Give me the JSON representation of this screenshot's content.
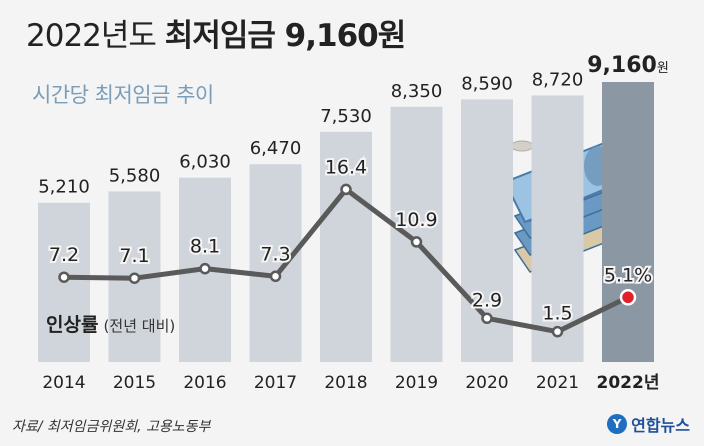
{
  "header": {
    "title_part1": "2022년도",
    "title_part2": "최저임금 9,160원",
    "subtitle": "시간당 최저임금 추이"
  },
  "legend": {
    "line_label": "인상률",
    "line_sublabel": "(전년 대비)"
  },
  "footer": {
    "source": "자료/ 최저임금위원회, 고용노동부",
    "logo_mark": "Y",
    "logo_text": "연합뉴스"
  },
  "colors": {
    "bar": "#cfd5da",
    "bar_highlight": "#8b98a4",
    "line": "#5a5a5a",
    "highlight_marker": "#e0202a"
  },
  "chart_data": {
    "type": "bar",
    "categories": [
      "2014",
      "2015",
      "2016",
      "2017",
      "2018",
      "2019",
      "2020",
      "2021",
      "2022년"
    ],
    "series": [
      {
        "type": "bar",
        "values": [
          5210,
          5580,
          6030,
          6470,
          7530,
          8350,
          8590,
          8720,
          9160
        ],
        "labels": [
          "5,210",
          "5,580",
          "6,030",
          "6,470",
          "7,530",
          "8,350",
          "8,590",
          "8,720",
          "9,160"
        ],
        "last_label_unit": "원"
      },
      {
        "type": "line",
        "name": "인상률",
        "values": [
          7.2,
          7.1,
          8.1,
          7.3,
          16.4,
          10.9,
          2.9,
          1.5,
          5.1
        ],
        "labels": [
          "7.2",
          "7.1",
          "8.1",
          "7.3",
          "16.4",
          "10.9",
          "2.9",
          "1.5",
          "5.1%"
        ]
      }
    ],
    "highlight_index": 8
  }
}
